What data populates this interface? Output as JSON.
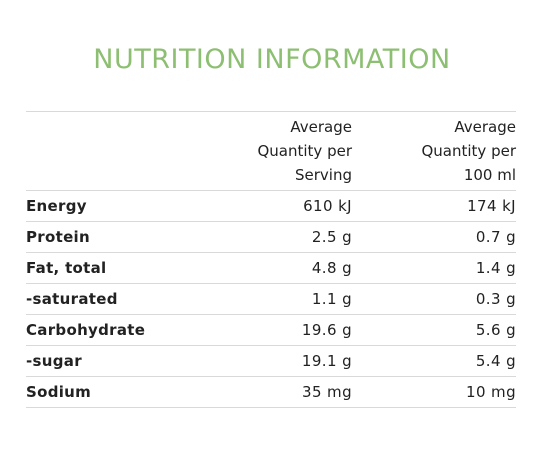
{
  "title": "NUTRITION INFORMATION",
  "colors": {
    "title": "#8dbf72",
    "text": "#222222",
    "divider": "#d9d9d9"
  },
  "table": {
    "headers": {
      "serving": [
        "Average",
        "Quantity per",
        "Serving"
      ],
      "per100": [
        "Average",
        "Quantity per",
        "100 ml"
      ]
    },
    "rows": [
      {
        "nutrient": "Energy",
        "serving": "610 kJ",
        "per100": "174 kJ"
      },
      {
        "nutrient": "Protein",
        "serving": "2.5 g",
        "per100": "0.7 g"
      },
      {
        "nutrient": "Fat, total",
        "serving": "4.8 g",
        "per100": "1.4 g"
      },
      {
        "nutrient": "-saturated",
        "serving": "1.1 g",
        "per100": "0.3 g"
      },
      {
        "nutrient": "Carbohydrate",
        "serving": "19.6 g",
        "per100": "5.6 g"
      },
      {
        "nutrient": "-sugar",
        "serving": "19.1 g",
        "per100": "5.4 g"
      },
      {
        "nutrient": "Sodium",
        "serving": "35 mg",
        "per100": "10 mg"
      }
    ]
  }
}
